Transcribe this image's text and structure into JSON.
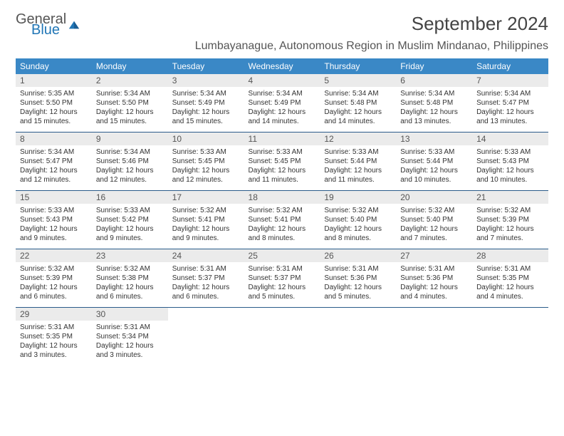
{
  "logo": {
    "general": "General",
    "blue": "Blue"
  },
  "title": "September 2024",
  "subtitle": "Lumbayanague, Autonomous Region in Muslim Mindanao, Philippines",
  "colors": {
    "header_bg": "#3a88c6",
    "header_text": "#ffffff",
    "daynum_bg": "#ebebeb",
    "row_border": "#2a5b8a",
    "logo_blue": "#2176b6",
    "text": "#333333"
  },
  "dayHeaders": [
    "Sunday",
    "Monday",
    "Tuesday",
    "Wednesday",
    "Thursday",
    "Friday",
    "Saturday"
  ],
  "weeks": [
    [
      {
        "n": "1",
        "sr": "5:35 AM",
        "ss": "5:50 PM",
        "dl": "12 hours and 15 minutes."
      },
      {
        "n": "2",
        "sr": "5:34 AM",
        "ss": "5:50 PM",
        "dl": "12 hours and 15 minutes."
      },
      {
        "n": "3",
        "sr": "5:34 AM",
        "ss": "5:49 PM",
        "dl": "12 hours and 15 minutes."
      },
      {
        "n": "4",
        "sr": "5:34 AM",
        "ss": "5:49 PM",
        "dl": "12 hours and 14 minutes."
      },
      {
        "n": "5",
        "sr": "5:34 AM",
        "ss": "5:48 PM",
        "dl": "12 hours and 14 minutes."
      },
      {
        "n": "6",
        "sr": "5:34 AM",
        "ss": "5:48 PM",
        "dl": "12 hours and 13 minutes."
      },
      {
        "n": "7",
        "sr": "5:34 AM",
        "ss": "5:47 PM",
        "dl": "12 hours and 13 minutes."
      }
    ],
    [
      {
        "n": "8",
        "sr": "5:34 AM",
        "ss": "5:47 PM",
        "dl": "12 hours and 12 minutes."
      },
      {
        "n": "9",
        "sr": "5:34 AM",
        "ss": "5:46 PM",
        "dl": "12 hours and 12 minutes."
      },
      {
        "n": "10",
        "sr": "5:33 AM",
        "ss": "5:45 PM",
        "dl": "12 hours and 12 minutes."
      },
      {
        "n": "11",
        "sr": "5:33 AM",
        "ss": "5:45 PM",
        "dl": "12 hours and 11 minutes."
      },
      {
        "n": "12",
        "sr": "5:33 AM",
        "ss": "5:44 PM",
        "dl": "12 hours and 11 minutes."
      },
      {
        "n": "13",
        "sr": "5:33 AM",
        "ss": "5:44 PM",
        "dl": "12 hours and 10 minutes."
      },
      {
        "n": "14",
        "sr": "5:33 AM",
        "ss": "5:43 PM",
        "dl": "12 hours and 10 minutes."
      }
    ],
    [
      {
        "n": "15",
        "sr": "5:33 AM",
        "ss": "5:43 PM",
        "dl": "12 hours and 9 minutes."
      },
      {
        "n": "16",
        "sr": "5:33 AM",
        "ss": "5:42 PM",
        "dl": "12 hours and 9 minutes."
      },
      {
        "n": "17",
        "sr": "5:32 AM",
        "ss": "5:41 PM",
        "dl": "12 hours and 9 minutes."
      },
      {
        "n": "18",
        "sr": "5:32 AM",
        "ss": "5:41 PM",
        "dl": "12 hours and 8 minutes."
      },
      {
        "n": "19",
        "sr": "5:32 AM",
        "ss": "5:40 PM",
        "dl": "12 hours and 8 minutes."
      },
      {
        "n": "20",
        "sr": "5:32 AM",
        "ss": "5:40 PM",
        "dl": "12 hours and 7 minutes."
      },
      {
        "n": "21",
        "sr": "5:32 AM",
        "ss": "5:39 PM",
        "dl": "12 hours and 7 minutes."
      }
    ],
    [
      {
        "n": "22",
        "sr": "5:32 AM",
        "ss": "5:39 PM",
        "dl": "12 hours and 6 minutes."
      },
      {
        "n": "23",
        "sr": "5:32 AM",
        "ss": "5:38 PM",
        "dl": "12 hours and 6 minutes."
      },
      {
        "n": "24",
        "sr": "5:31 AM",
        "ss": "5:37 PM",
        "dl": "12 hours and 6 minutes."
      },
      {
        "n": "25",
        "sr": "5:31 AM",
        "ss": "5:37 PM",
        "dl": "12 hours and 5 minutes."
      },
      {
        "n": "26",
        "sr": "5:31 AM",
        "ss": "5:36 PM",
        "dl": "12 hours and 5 minutes."
      },
      {
        "n": "27",
        "sr": "5:31 AM",
        "ss": "5:36 PM",
        "dl": "12 hours and 4 minutes."
      },
      {
        "n": "28",
        "sr": "5:31 AM",
        "ss": "5:35 PM",
        "dl": "12 hours and 4 minutes."
      }
    ],
    [
      {
        "n": "29",
        "sr": "5:31 AM",
        "ss": "5:35 PM",
        "dl": "12 hours and 3 minutes."
      },
      {
        "n": "30",
        "sr": "5:31 AM",
        "ss": "5:34 PM",
        "dl": "12 hours and 3 minutes."
      },
      null,
      null,
      null,
      null,
      null
    ]
  ],
  "labels": {
    "sunrise": "Sunrise:",
    "sunset": "Sunset:",
    "daylight": "Daylight:"
  }
}
